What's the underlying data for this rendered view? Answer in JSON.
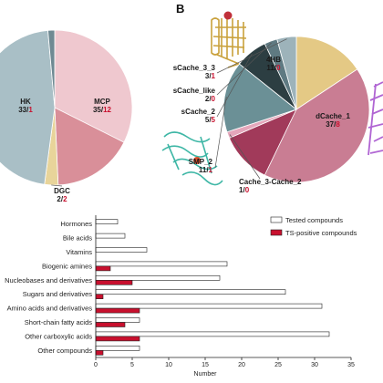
{
  "panel_label": "B",
  "chart_data": [
    {
      "type": "pie",
      "panel": "A",
      "slices": [
        {
          "name": "HK",
          "tested": "33",
          "positive": "1",
          "value": 33,
          "color": "#a9bfc6"
        },
        {
          "name": "MCP",
          "tested": "35",
          "positive": "12",
          "value": 35,
          "color": "#efc8cf",
          "emphasis_color": "#d98f99"
        },
        {
          "name": "DGC",
          "tested": "2",
          "positive": "2",
          "value": 2,
          "color": "#e8d49a"
        },
        {
          "name": "",
          "value": 1,
          "color": "#6f8a93"
        }
      ]
    },
    {
      "type": "pie",
      "panel": "B",
      "slices": [
        {
          "name": "4HB",
          "tested": "11",
          "positive": "0",
          "value": 11,
          "color": "#e4c985"
        },
        {
          "name": "dCache_1",
          "tested": "37",
          "positive": "8",
          "value": 37,
          "color": "#c97d93",
          "emphasis_color": "#a13a5a"
        },
        {
          "name": "Cache_3-Cache_2",
          "tested": "1",
          "positive": "0",
          "value": 1,
          "color": "#e4a7bb"
        },
        {
          "name": "SMP_2",
          "tested": "11",
          "positive": "1",
          "value": 11,
          "color": "#6b9096"
        },
        {
          "name": "sCache_2",
          "tested": "5",
          "positive": "5",
          "value": 5,
          "color": "#2c3e42"
        },
        {
          "name": "sCache_like",
          "tested": "2",
          "positive": "0",
          "value": 2,
          "color": "#5f7a82"
        },
        {
          "name": "sCache_3_3",
          "tested": "3",
          "positive": "1",
          "value": 3,
          "color": "#9db3ba"
        }
      ]
    },
    {
      "type": "bar",
      "orientation": "horizontal",
      "xlabel": "Number",
      "xlim": [
        0,
        35
      ],
      "xticks": [
        "0",
        "5",
        "10",
        "15",
        "20",
        "25",
        "30",
        "35"
      ],
      "categories": [
        "Hormones",
        "Bile acids",
        "Vitamins",
        "Biogenic amines",
        "Nucleobases and derivatives",
        "Sugars and derivatives",
        "Amino acids and derivatives",
        "Short-chain fatty acids",
        "Other carboxylic acids",
        "Other compounds"
      ],
      "legend_position": "top-right",
      "series": [
        {
          "name": "Tested compounds",
          "color": "#ffffff",
          "values": [
            3,
            4,
            7,
            18,
            17,
            26,
            31,
            6,
            32,
            6
          ]
        },
        {
          "name": "TS-positive compounds",
          "color": "#c8102e",
          "values": [
            0,
            0,
            0,
            2,
            5,
            1,
            6,
            4,
            6,
            1
          ]
        }
      ]
    }
  ]
}
